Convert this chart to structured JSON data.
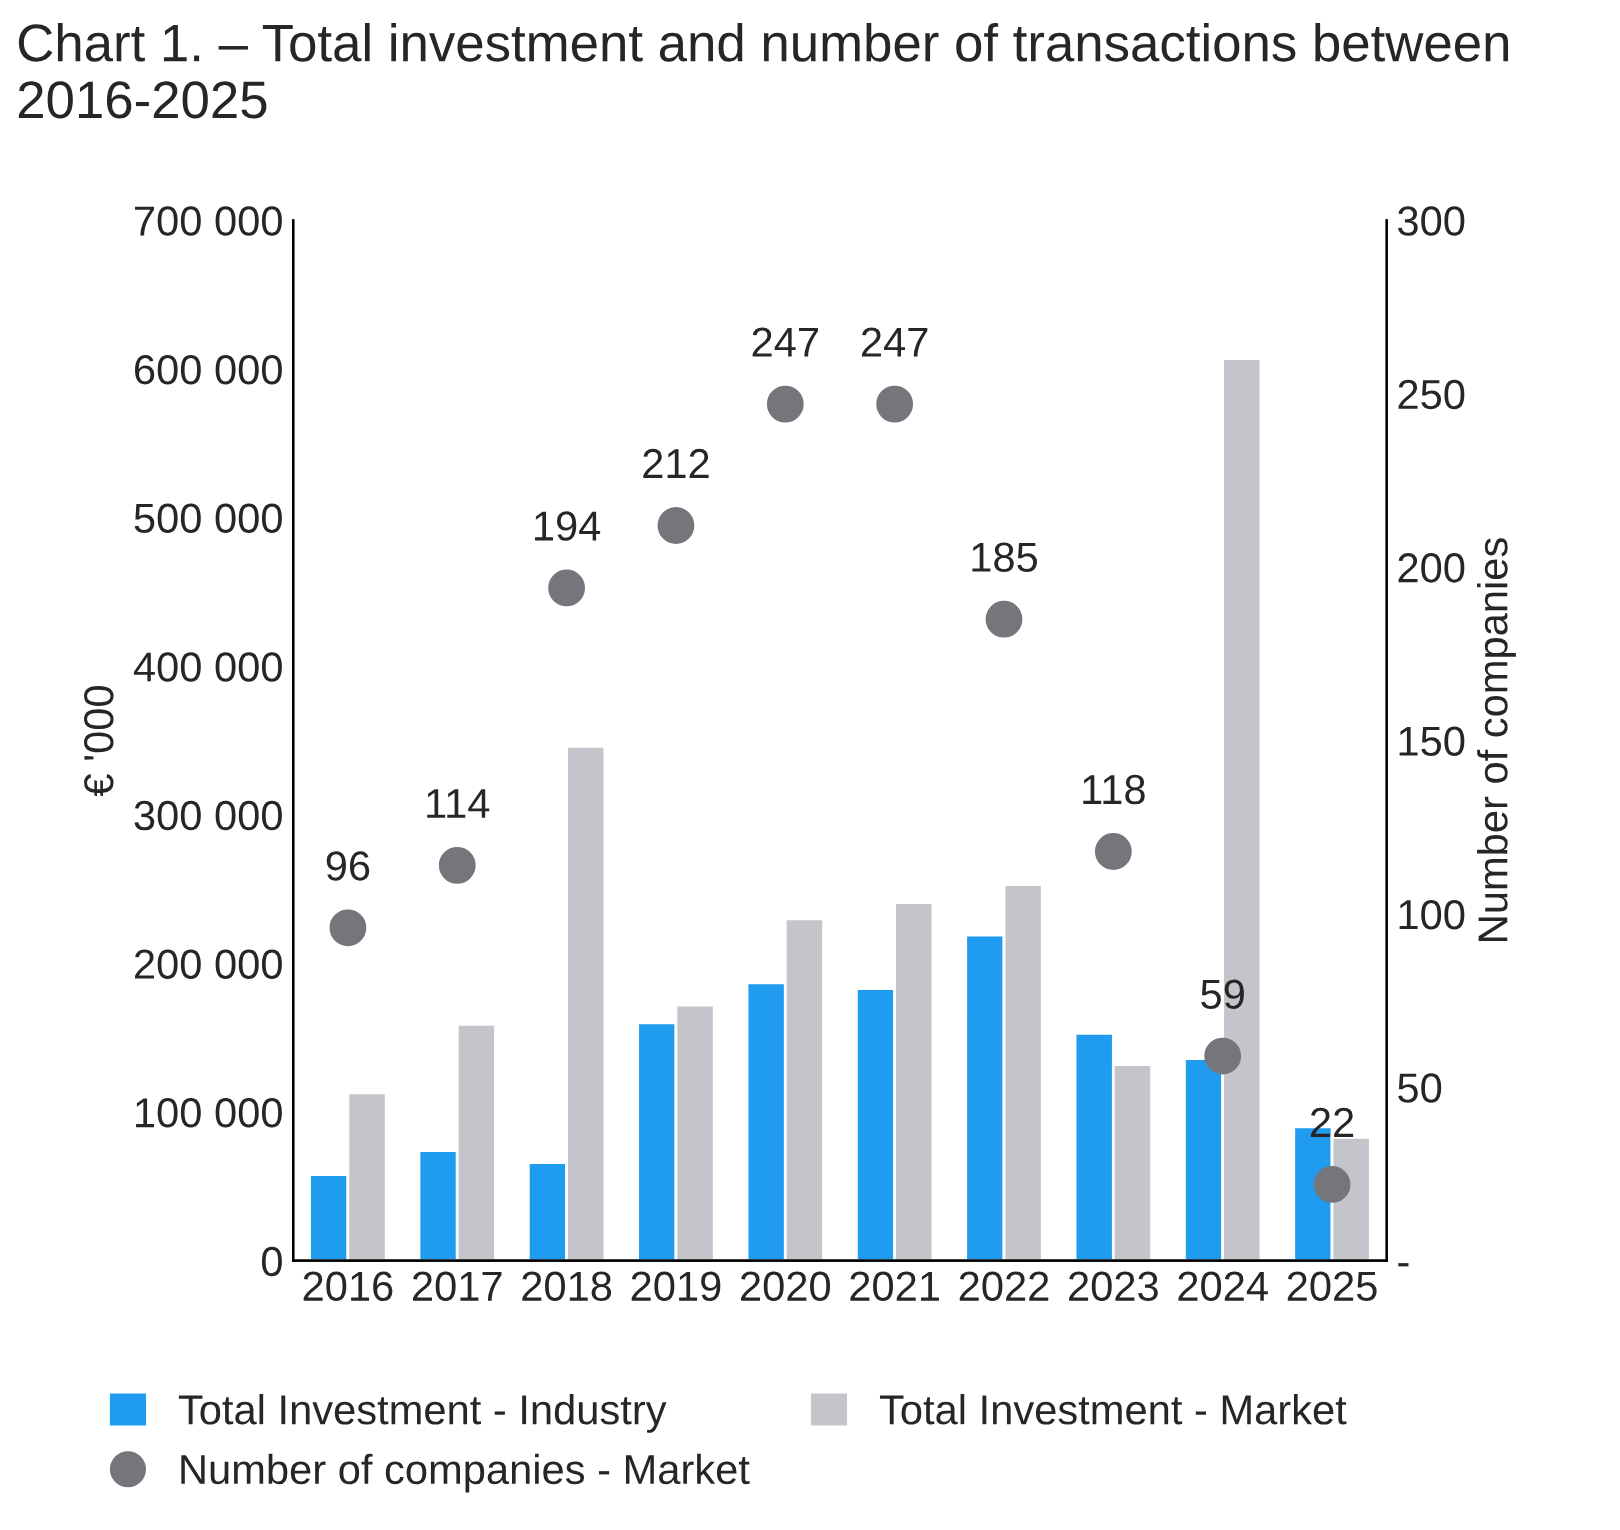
{
  "chart_data": {
    "type": "bar",
    "title": "Chart 1. – Total investment and number of transactions between 2016-2025",
    "categories": [
      "2016",
      "2017",
      "2018",
      "2019",
      "2020",
      "2021",
      "2022",
      "2023",
      "2024",
      "2025"
    ],
    "series": [
      {
        "name": "Total Investment - Industry",
        "color": "#1f9bf0",
        "values": [
          58000,
          74000,
          66000,
          160000,
          187000,
          183000,
          219000,
          153000,
          136000,
          90000
        ]
      },
      {
        "name": "Total Investment - Market",
        "color": "#c4c5ca",
        "values": [
          113000,
          159000,
          346000,
          172000,
          230000,
          241000,
          253000,
          132000,
          607000,
          83000
        ]
      },
      {
        "name": "Number of companies - Market",
        "type": "scatter",
        "axis": "y2",
        "color": "#75767b",
        "marker": "circle",
        "values": [
          96,
          114,
          194,
          212,
          247,
          247,
          185,
          118,
          59,
          22
        ],
        "value_labels": [
          "96",
          "114",
          "194",
          "212",
          "247",
          "247",
          "185",
          "118",
          "59",
          "22"
        ]
      }
    ],
    "ylabel": "€ '000",
    "y2label": "Number of companies",
    "ylim": [
      0,
      700000
    ],
    "yticks": [
      0,
      {
        "value": 100000,
        "label": "100 000"
      },
      {
        "value": 200000,
        "label": "200 000"
      },
      {
        "value": 300000,
        "label": "300 000"
      },
      {
        "value": 400000,
        "label": "400 000"
      },
      {
        "value": 500000,
        "label": "500 000"
      },
      {
        "value": 600000,
        "label": "600 000"
      },
      {
        "value": 700000,
        "label": "700 000"
      }
    ],
    "y2lim": [
      0,
      300
    ],
    "y2ticks": [
      {
        "value": 0,
        "label": "-"
      },
      50,
      100,
      150,
      200,
      250,
      300
    ],
    "grid": false,
    "legend": "bottom"
  }
}
